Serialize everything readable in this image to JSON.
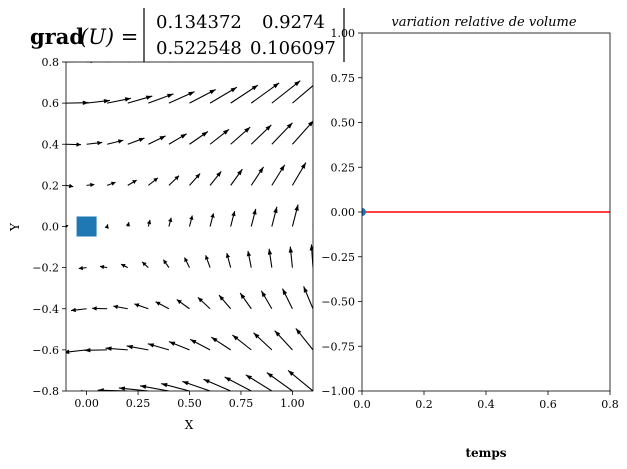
{
  "chart_data": [
    {
      "type": "quiver",
      "title": {
        "prefix": "grad",
        "argument": "(U) =",
        "matrix": [
          [
            "0.134372",
            "0.9274"
          ],
          [
            "0.522548",
            "0.106097"
          ]
        ]
      },
      "xlabel": "X",
      "ylabel": "Y",
      "xlim": [
        -0.1,
        1.1
      ],
      "ylim": [
        -0.8,
        0.8
      ],
      "xticks": [
        0.0,
        0.25,
        0.5,
        0.75,
        1.0
      ],
      "xtick_labels": [
        "0.00",
        "0.25",
        "0.50",
        "0.75",
        "1.00"
      ],
      "yticks": [
        -0.8,
        -0.6,
        -0.4,
        -0.2,
        0.0,
        0.2,
        0.4,
        0.6,
        0.8
      ],
      "ytick_labels": [
        "−0.8",
        "−0.6",
        "−0.4",
        "−0.2",
        "0.0",
        "0.2",
        "0.4",
        "0.6",
        "0.8"
      ],
      "gradient": [
        [
          0.134372,
          0.9274
        ],
        [
          0.522548,
          0.106097
        ]
      ],
      "grid_x": [
        -0.1,
        0.0,
        0.1,
        0.2,
        0.3,
        0.4,
        0.5,
        0.6,
        0.7,
        0.8,
        0.9,
        1.0,
        1.1
      ],
      "grid_y": [
        -0.8,
        -0.6,
        -0.4,
        -0.2,
        0.0,
        0.2,
        0.4,
        0.6,
        0.8
      ],
      "marker": {
        "shape": "square",
        "x": 0.0,
        "y": 0.0,
        "color": "#1f77b4"
      },
      "arrow_color": "#000000",
      "grid": false
    },
    {
      "type": "line",
      "title": "variation relative de volume",
      "xlabel": "temps",
      "ylabel": "",
      "xlim": [
        0.0,
        0.8
      ],
      "ylim": [
        -1.0,
        1.0
      ],
      "xticks": [
        0.0,
        0.2,
        0.4,
        0.6,
        0.8
      ],
      "xtick_labels": [
        "0.0",
        "0.2",
        "0.4",
        "0.6",
        "0.8"
      ],
      "yticks": [
        -1.0,
        -0.75,
        -0.5,
        -0.25,
        0.0,
        0.25,
        0.5,
        0.75,
        1.0
      ],
      "ytick_labels": [
        "−1.00",
        "−0.75",
        "−0.50",
        "−0.25",
        "0.00",
        "0.25",
        "0.50",
        "0.75",
        "1.00"
      ],
      "series": [
        {
          "x": [
            0.0,
            0.8
          ],
          "y": [
            0.0,
            0.0
          ],
          "color": "#ff0000"
        }
      ],
      "point": {
        "x": 0.0,
        "y": 0.0,
        "color": "#1f77b4"
      },
      "grid": false
    }
  ]
}
